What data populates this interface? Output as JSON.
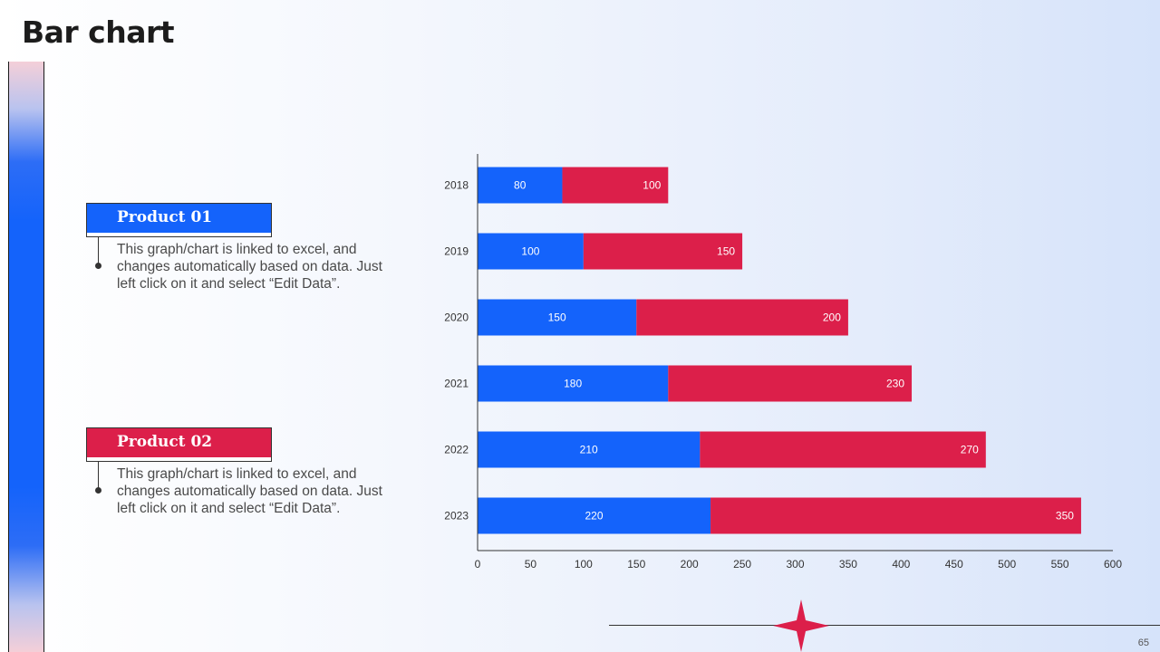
{
  "page": {
    "title": "Bar chart",
    "page_number": "65"
  },
  "products": [
    {
      "name": "Product 01",
      "color": "#1463FB",
      "description": "This graph/chart is linked to excel, and changes automatically based on data. Just left click on it and select “Edit Data”."
    },
    {
      "name": "Product 02",
      "color": "#DC1F4A",
      "description": "This graph/chart is linked to excel, and changes automatically based on data. Just left click on it and select “Edit Data”."
    }
  ],
  "chart_data": {
    "type": "bar",
    "orientation": "horizontal",
    "stacked": true,
    "categories": [
      "2018",
      "2019",
      "2020",
      "2021",
      "2022",
      "2023"
    ],
    "series": [
      {
        "name": "Product 01",
        "color": "#1463FB",
        "values": [
          80,
          100,
          150,
          180,
          210,
          220
        ]
      },
      {
        "name": "Product 02",
        "color": "#DC1F4A",
        "values": [
          100,
          150,
          200,
          230,
          270,
          350
        ]
      }
    ],
    "xlim": [
      0,
      600
    ],
    "xticks": [
      0,
      50,
      100,
      150,
      200,
      250,
      300,
      350,
      400,
      450,
      500,
      550,
      600
    ],
    "title": "",
    "xlabel": "",
    "ylabel": "",
    "grid": false,
    "data_labels": true
  }
}
